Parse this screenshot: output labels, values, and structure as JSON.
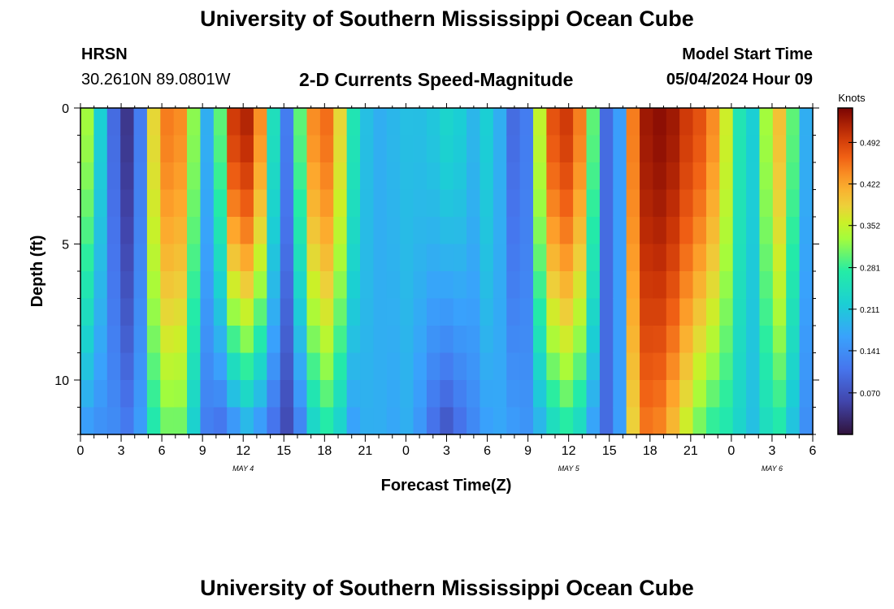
{
  "page_title": "University of Southern Mississippi Ocean Cube",
  "footer_title": "University of Southern Mississippi Ocean Cube",
  "station": {
    "code": "HRSN",
    "coords": "30.2610N  89.0801W"
  },
  "model": {
    "label": "Model Start Time",
    "value": "05/04/2024 Hour 09"
  },
  "chart_data": {
    "type": "heatmap",
    "title": "2-D Currents Speed-Magnitude",
    "xlabel": "Forecast Time(Z)",
    "ylabel": "Depth (ft)",
    "colorbar_label": "Knots",
    "colorbar_ticks": [
      0.07,
      0.141,
      0.211,
      0.281,
      0.352,
      0.422,
      0.492
    ],
    "colorbar_tick_labels": [
      "0.070",
      "0.141",
      "0.211",
      "0.281",
      "0.352",
      "0.422",
      "0.492"
    ],
    "vmin": 0.0,
    "vmax": 0.55,
    "xlim": [
      0,
      54
    ],
    "ylim": [
      0,
      12
    ],
    "x_ticks": [
      0,
      3,
      6,
      9,
      12,
      15,
      18,
      21,
      24,
      27,
      30,
      33,
      36,
      39,
      42,
      45,
      48,
      51,
      54
    ],
    "x_tick_labels": [
      "0",
      "3",
      "6",
      "9",
      "12",
      "15",
      "18",
      "21",
      "0",
      "3",
      "6",
      "9",
      "12",
      "15",
      "18",
      "21",
      "0",
      "3",
      "6"
    ],
    "y_ticks": [
      0,
      5,
      10
    ],
    "y_tick_labels": [
      "0",
      "5",
      "10"
    ],
    "date_labels": [
      {
        "x": 12,
        "text": "MAY 4"
      },
      {
        "x": 36,
        "text": "MAY 5"
      },
      {
        "x": 51,
        "text": "MAY 6"
      }
    ],
    "time_hours": [
      0,
      1,
      2,
      3,
      4,
      5,
      6,
      7,
      8,
      9,
      10,
      11,
      12,
      13,
      14,
      15,
      16,
      17,
      18,
      19,
      20,
      21,
      22,
      23,
      24,
      25,
      26,
      27,
      28,
      29,
      30,
      31,
      32,
      33,
      34,
      35,
      36,
      37,
      38,
      39,
      40,
      41,
      42,
      43,
      44,
      45,
      46,
      47,
      48,
      49,
      50,
      51,
      52,
      53,
      54
    ],
    "surface_speed_knots": [
      0.33,
      0.22,
      0.1,
      0.04,
      0.12,
      0.38,
      0.45,
      0.44,
      0.32,
      0.18,
      0.3,
      0.5,
      0.52,
      0.44,
      0.25,
      0.12,
      0.3,
      0.44,
      0.46,
      0.38,
      0.26,
      0.2,
      0.18,
      0.19,
      0.2,
      0.2,
      0.21,
      0.23,
      0.22,
      0.19,
      0.22,
      0.18,
      0.1,
      0.12,
      0.35,
      0.48,
      0.5,
      0.45,
      0.3,
      0.1,
      0.16,
      0.45,
      0.53,
      0.54,
      0.53,
      0.5,
      0.48,
      0.44,
      0.36,
      0.26,
      0.22,
      0.33,
      0.4,
      0.3,
      0.18
    ],
    "bottom_speed_knots": [
      0.15,
      0.14,
      0.14,
      0.12,
      0.16,
      0.26,
      0.3,
      0.3,
      0.22,
      0.12,
      0.1,
      0.13,
      0.17,
      0.14,
      0.1,
      0.06,
      0.12,
      0.22,
      0.26,
      0.22,
      0.16,
      0.18,
      0.18,
      0.17,
      0.18,
      0.15,
      0.1,
      0.07,
      0.1,
      0.13,
      0.16,
      0.17,
      0.16,
      0.15,
      0.18,
      0.23,
      0.26,
      0.23,
      0.16,
      0.1,
      0.16,
      0.38,
      0.45,
      0.44,
      0.4,
      0.35,
      0.3,
      0.27,
      0.26,
      0.23,
      0.2,
      0.24,
      0.26,
      0.2,
      0.14
    ]
  }
}
